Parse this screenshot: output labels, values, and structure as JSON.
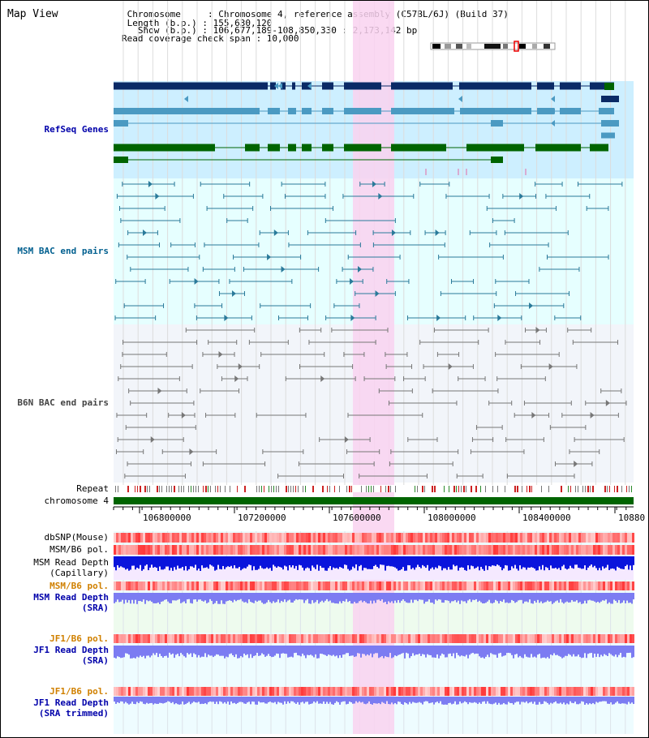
{
  "page": {
    "title": "Map View"
  },
  "header": {
    "lines": [
      " Chromosome     : Chromosome 4, reference assembly (C57BL/6J) (Build 37)",
      " Length (b.p.) : 155,630,120",
      "   Show (b.p.) : 106,677,189-108,850,330 : 2,173,142 bp",
      "Read coverage check span : 10,000"
    ]
  },
  "tracks": {
    "refseq": "RefSeq Genes",
    "msm_bac": "MSM BAC end pairs",
    "b6n_bac": "B6N BAC end pairs",
    "repeat": "Repeat",
    "chromosome": "chromosome 4",
    "dbsnp": "dbSNP(Mouse)",
    "msm_b6_pol": "MSM/B6 pol.",
    "msm_read_depth_cap_1": "MSM Read Depth",
    "msm_read_depth_cap_2": "(Capillary)",
    "msm_b6_pol_2": "MSM/B6 pol.",
    "msm_read_depth_sra_1": "MSM Read Depth",
    "msm_read_depth_sra_2": "(SRA)",
    "jf1_b6_pol": "JF1/B6 pol.",
    "jf1_read_depth_sra_1": "JF1 Read Depth",
    "jf1_read_depth_sra_2": "(SRA)",
    "jf1_b6_pol_2": "JF1/B6 pol.",
    "jf1_read_depth_trim_1": "JF1 Read Depth",
    "jf1_read_depth_trim_2": "(SRA trimmed)"
  },
  "axis": {
    "ticks": [
      "106800000",
      "107200000",
      "107600000",
      "108000000",
      "108400000",
      "10880"
    ]
  },
  "colors": {
    "refseq_bg": "#cdefff",
    "msm_bg": "#e6ffff",
    "b6n_bg": "#f2f5fa",
    "highlight": "#f9d2f0",
    "chrom_bar": "#006400",
    "gene_dark": "#0a2a66",
    "gene_mid": "#4b9ac2",
    "gene_green": "#006400",
    "depth_blue": "#0a14dc",
    "depth_light": "#7c7cf2"
  }
}
